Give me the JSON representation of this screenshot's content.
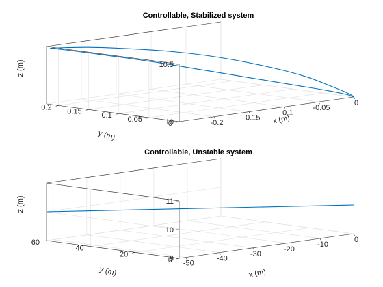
{
  "figure": {
    "background": "#ffffff"
  },
  "chart_data": [
    {
      "type": "line3d",
      "title": "Controllable, Stabilized system",
      "xlabel": "x (m)",
      "ylabel": "y (m)",
      "zlabel": "z (m)",
      "xlim": [
        -0.25,
        0
      ],
      "ylim": [
        0,
        0.22
      ],
      "zlim": [
        10,
        10.5
      ],
      "xticks": [
        -0.2,
        -0.15,
        -0.1,
        -0.05,
        0
      ],
      "yticks": [
        0,
        0.05,
        0.1,
        0.15,
        0.2
      ],
      "zticks": [
        10,
        10.5
      ],
      "xtick_labels": [
        "-0.2",
        "-0.15",
        "-0.1",
        "-0.05",
        "0"
      ],
      "ytick_labels": [
        "0",
        "0.05",
        "0.1",
        "0.15",
        "0.2"
      ],
      "ztick_labels": [
        "10",
        "10.5"
      ],
      "grid": true,
      "series": [
        {
          "color": "#0072bd",
          "x": [
            -0.245,
            -0.235,
            -0.22,
            -0.2,
            -0.16,
            -0.12,
            -0.08,
            -0.045,
            -0.02,
            -0.004,
            0,
            -0.004,
            -0.02,
            -0.045,
            -0.08,
            -0.12,
            -0.16,
            -0.2,
            -0.23,
            -0.245
          ],
          "y": [
            0.22,
            0.205,
            0.185,
            0.16,
            0.125,
            0.09,
            0.055,
            0.03,
            0.013,
            0.003,
            0,
            0.006,
            0.022,
            0.045,
            0.075,
            0.11,
            0.145,
            0.18,
            0.205,
            0.22
          ],
          "z": [
            10.48,
            10.488,
            10.492,
            10.485,
            10.45,
            10.39,
            10.3,
            10.2,
            10.1,
            10.03,
            10.0,
            10.02,
            10.06,
            10.11,
            10.18,
            10.26,
            10.34,
            10.41,
            10.46,
            10.48
          ]
        }
      ]
    },
    {
      "type": "line3d",
      "title": "Controllable, Unstable system",
      "xlabel": "x (m)",
      "ylabel": "y (m)",
      "zlabel": "z (m)",
      "xlim": [
        -52,
        0
      ],
      "ylim": [
        0,
        60
      ],
      "zlim": [
        9,
        11
      ],
      "xticks": [
        -50,
        -40,
        -30,
        -20,
        -10,
        0
      ],
      "yticks": [
        0,
        20,
        40,
        60
      ],
      "zticks": [
        9,
        10,
        11
      ],
      "xtick_labels": [
        "-50",
        "-40",
        "-30",
        "-20",
        "-10",
        "0"
      ],
      "ytick_labels": [
        "0",
        "20",
        "40",
        "60"
      ],
      "ztick_labels": [
        "9",
        "10",
        "11"
      ],
      "grid": true,
      "series": [
        {
          "color": "#0072bd",
          "x": [
            -52,
            0
          ],
          "y": [
            60,
            0
          ],
          "z": [
            10,
            10
          ]
        }
      ]
    }
  ]
}
